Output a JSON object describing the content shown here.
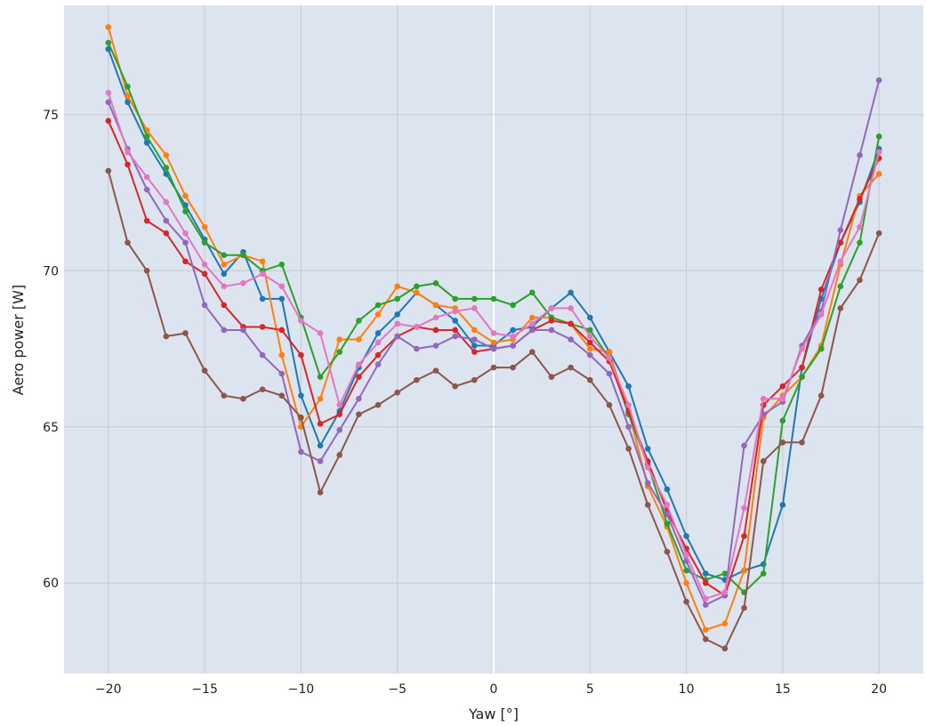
{
  "chart_data": {
    "type": "line",
    "xlabel": "Yaw [°]",
    "ylabel": "Aero power [W]",
    "xlim": [
      -22.3,
      22.3
    ],
    "ylim": [
      57.1,
      78.5
    ],
    "xticks": [
      -20,
      -15,
      -10,
      -5,
      0,
      5,
      10,
      15,
      20
    ],
    "xtick_labels": [
      "−20",
      "−15",
      "−10",
      "−5",
      "0",
      "5",
      "10",
      "15",
      "20"
    ],
    "yticks": [
      60,
      65,
      70,
      75
    ],
    "ytick_labels": [
      "60",
      "65",
      "70",
      "75"
    ],
    "grid": true,
    "legend": "none",
    "background": "#dce4ef",
    "x": [
      -20,
      -19,
      -18,
      -17,
      -16,
      -15,
      -14,
      -13,
      -12,
      -11,
      -10,
      -9,
      -8,
      -7,
      -6,
      -5,
      -4,
      -3,
      -2,
      -1,
      0,
      1,
      2,
      3,
      4,
      5,
      6,
      7,
      8,
      9,
      10,
      11,
      12,
      13,
      14,
      15,
      16,
      17,
      18,
      19,
      20
    ],
    "series": [
      {
        "color": "#1f77b4",
        "values": [
          77.1,
          75.4,
          74.1,
          73.1,
          72.1,
          71.0,
          69.9,
          70.6,
          69.1,
          69.1,
          66.0,
          64.4,
          65.5,
          66.9,
          68.0,
          68.6,
          69.3,
          68.9,
          68.4,
          67.6,
          67.6,
          68.1,
          68.2,
          68.8,
          69.3,
          68.5,
          67.4,
          66.3,
          64.3,
          63.0,
          61.5,
          60.3,
          60.1,
          60.4,
          60.6,
          62.5,
          66.9,
          69.1,
          70.9,
          72.2,
          73.9
        ]
      },
      {
        "color": "#ff7f0e",
        "values": [
          77.8,
          75.6,
          74.5,
          73.7,
          72.4,
          71.4,
          70.2,
          70.5,
          70.3,
          67.3,
          65.0,
          65.9,
          67.8,
          67.8,
          68.6,
          69.5,
          69.3,
          68.9,
          68.8,
          68.1,
          67.7,
          67.8,
          68.5,
          68.5,
          68.3,
          67.5,
          67.4,
          65.5,
          63.1,
          61.8,
          60.0,
          58.5,
          58.7,
          60.4,
          65.3,
          66.0,
          66.6,
          67.6,
          70.2,
          72.4,
          73.1
        ]
      },
      {
        "color": "#2ca02c",
        "values": [
          77.3,
          75.9,
          74.3,
          73.3,
          71.9,
          70.9,
          70.5,
          70.5,
          70.0,
          70.2,
          68.5,
          66.6,
          67.4,
          68.4,
          68.9,
          69.1,
          69.5,
          69.6,
          69.1,
          69.1,
          69.1,
          68.9,
          69.3,
          68.5,
          68.3,
          68.1,
          67.2,
          65.4,
          63.8,
          61.9,
          60.4,
          60.1,
          60.3,
          59.7,
          60.3,
          65.2,
          66.6,
          67.5,
          69.5,
          70.9,
          74.3
        ]
      },
      {
        "color": "#d62728",
        "values": [
          74.8,
          73.4,
          71.6,
          71.2,
          70.3,
          69.9,
          68.9,
          68.2,
          68.2,
          68.1,
          67.3,
          65.1,
          65.4,
          66.6,
          67.3,
          67.9,
          68.2,
          68.1,
          68.1,
          67.4,
          67.5,
          67.6,
          68.1,
          68.4,
          68.3,
          67.7,
          67.1,
          65.5,
          63.9,
          62.3,
          61.1,
          60.0,
          59.6,
          61.5,
          65.7,
          66.3,
          66.9,
          69.4,
          70.9,
          72.3,
          73.6
        ]
      },
      {
        "color": "#9467bd",
        "values": [
          75.4,
          73.9,
          72.6,
          71.6,
          70.9,
          68.9,
          68.1,
          68.1,
          67.3,
          66.7,
          64.2,
          63.9,
          64.9,
          65.9,
          67.0,
          67.9,
          67.5,
          67.6,
          67.9,
          67.8,
          67.5,
          67.6,
          68.1,
          68.1,
          67.8,
          67.3,
          66.7,
          65.0,
          63.2,
          62.2,
          60.7,
          59.3,
          59.6,
          64.4,
          65.4,
          65.8,
          67.6,
          68.7,
          71.3,
          73.7,
          76.1
        ]
      },
      {
        "color": "#8c564b",
        "values": [
          73.2,
          70.9,
          70.0,
          67.9,
          68.0,
          66.8,
          66.0,
          65.9,
          66.2,
          66.0,
          65.3,
          62.9,
          64.1,
          65.4,
          65.7,
          66.1,
          66.5,
          66.8,
          66.3,
          66.5,
          66.9,
          66.9,
          67.4,
          66.6,
          66.9,
          66.5,
          65.7,
          64.3,
          62.5,
          61.0,
          59.4,
          58.2,
          57.9,
          59.2,
          63.9,
          64.5,
          64.5,
          66.0,
          68.8,
          69.7,
          71.2
        ]
      },
      {
        "color": "#e377c2",
        "values": [
          75.7,
          73.8,
          73.0,
          72.2,
          71.2,
          70.2,
          69.5,
          69.6,
          69.9,
          69.5,
          68.4,
          68.0,
          65.7,
          67.0,
          67.7,
          68.3,
          68.2,
          68.5,
          68.7,
          68.8,
          68.0,
          67.9,
          68.3,
          68.8,
          68.8,
          67.9,
          67.2,
          65.7,
          63.7,
          62.5,
          60.9,
          59.5,
          59.7,
          62.4,
          65.9,
          65.9,
          67.5,
          68.6,
          70.3,
          71.4,
          73.8
        ]
      }
    ]
  }
}
